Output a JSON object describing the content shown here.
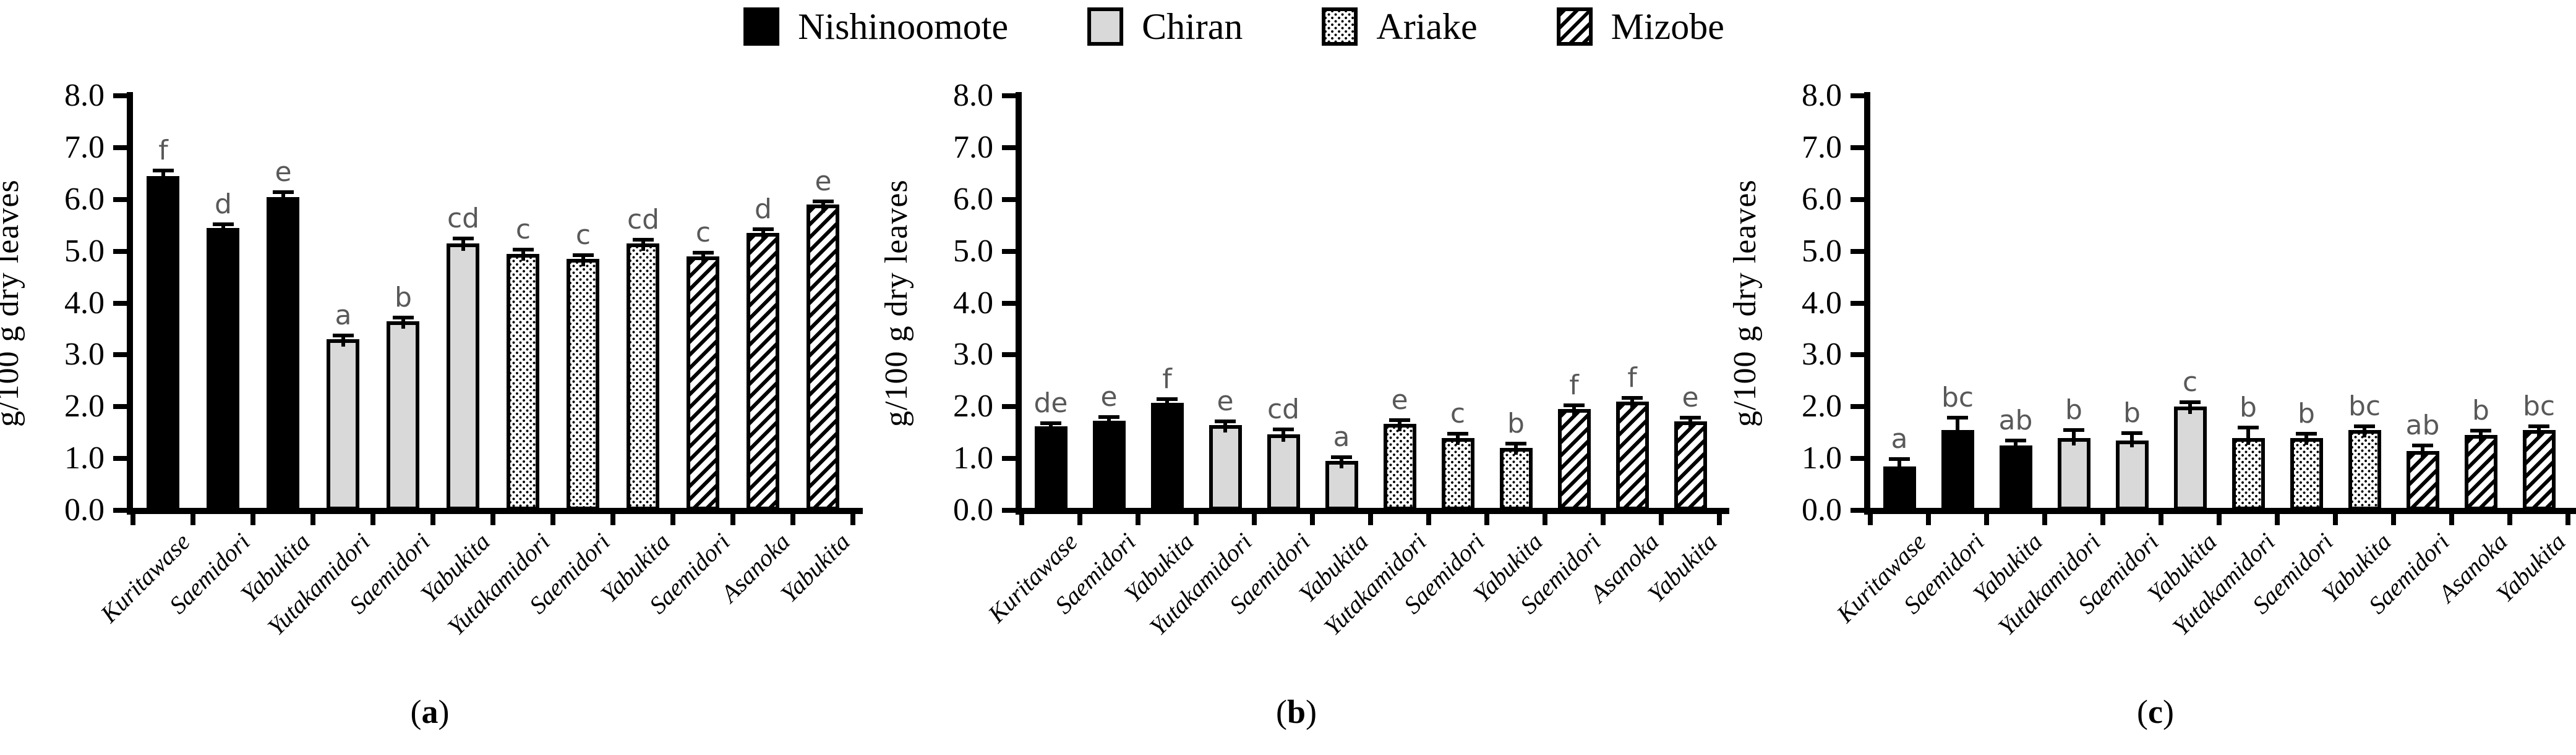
{
  "colors": {
    "background": "#ffffff",
    "axis": "#000000",
    "bar_black": "#000000",
    "bar_gray": "#d9d9d9",
    "significance_letter": "#595959"
  },
  "legend": {
    "items": [
      {
        "label": "Nishinoomote",
        "pattern": "solid-black"
      },
      {
        "label": "Chiran",
        "pattern": "light-gray"
      },
      {
        "label": "Ariake",
        "pattern": "dots"
      },
      {
        "label": "Mizobe",
        "pattern": "diagonal-hatch"
      }
    ]
  },
  "y_axis": {
    "label": "g/100 g dry leaves",
    "min": 0,
    "max": 8,
    "step": 1,
    "tick_labels": [
      "0.0",
      "1.0",
      "2.0",
      "3.0",
      "4.0",
      "5.0",
      "6.0",
      "7.0",
      "8.0"
    ]
  },
  "chart_data": [
    {
      "type": "bar",
      "panel": "a",
      "caption": "(a)",
      "caption_prefix": "(",
      "letter": "a",
      "caption_suffix": ")",
      "ylabel": "g/100 g dry leaves",
      "ylim": [
        0,
        8
      ],
      "yticks": [
        0,
        1,
        2,
        3,
        4,
        5,
        6,
        7,
        8
      ],
      "grid": false,
      "categories": [
        "Kuritawase",
        "Saemidori",
        "Yabukita",
        "Yutakamidori",
        "Saemidori",
        "Yabukita",
        "Yutakamidori",
        "Saemidori",
        "Yabukita",
        "Saemidori",
        "Asanoka",
        "Yabukita"
      ],
      "groups": [
        "Nishinoomote",
        "Nishinoomote",
        "Nishinoomote",
        "Chiran",
        "Chiran",
        "Chiran",
        "Ariake",
        "Ariake",
        "Ariake",
        "Mizobe",
        "Mizobe",
        "Mizobe"
      ],
      "values": [
        6.45,
        5.45,
        6.05,
        3.3,
        3.65,
        5.15,
        4.95,
        4.85,
        5.15,
        4.9,
        5.35,
        5.9
      ],
      "errors": [
        0.07,
        0.03,
        0.05,
        0.04,
        0.04,
        0.06,
        0.04,
        0.04,
        0.04,
        0.03,
        0.04,
        0.03
      ],
      "letters": [
        "f",
        "d",
        "e",
        "a",
        "b",
        "cd",
        "c",
        "c",
        "cd",
        "c",
        "d",
        "e"
      ]
    },
    {
      "type": "bar",
      "panel": "b",
      "caption": "(b)",
      "caption_prefix": "(",
      "letter": "b",
      "caption_suffix": ")",
      "ylabel": "g/100 g dry leaves",
      "ylim": [
        0,
        8
      ],
      "yticks": [
        0,
        1,
        2,
        3,
        4,
        5,
        6,
        7,
        8
      ],
      "grid": false,
      "categories": [
        "Kuritawase",
        "Saemidori",
        "Yabukita",
        "Yutakamidori",
        "Saemidori",
        "Yabukita",
        "Yutakamidori",
        "Saemidori",
        "Yabukita",
        "Saemidori",
        "Asanoka",
        "Yabukita"
      ],
      "groups": [
        "Nishinoomote",
        "Nishinoomote",
        "Nishinoomote",
        "Chiran",
        "Chiran",
        "Chiran",
        "Ariake",
        "Ariake",
        "Ariake",
        "Mizobe",
        "Mizobe",
        "Mizobe"
      ],
      "values": [
        1.62,
        1.73,
        2.07,
        1.65,
        1.47,
        0.95,
        1.67,
        1.4,
        1.21,
        1.96,
        2.1,
        1.72
      ],
      "errors": [
        0.03,
        0.03,
        0.04,
        0.03,
        0.06,
        0.04,
        0.03,
        0.04,
        0.04,
        0.03,
        0.04,
        0.03
      ],
      "letters": [
        "de",
        "e",
        "f",
        "e",
        "cd",
        "a",
        "e",
        "c",
        "b",
        "f",
        "f",
        "e"
      ]
    },
    {
      "type": "bar",
      "panel": "c",
      "caption": "(c)",
      "caption_prefix": "(",
      "letter": "c",
      "caption_suffix": ")",
      "ylabel": "g/100 g dry leaves",
      "ylim": [
        0,
        8
      ],
      "yticks": [
        0,
        1,
        2,
        3,
        4,
        5,
        6,
        7,
        8
      ],
      "grid": false,
      "categories": [
        "Kuritawase",
        "Saemidori",
        "Yabukita",
        "Yutakamidori",
        "Saemidori",
        "Yabukita",
        "Yutakamidori",
        "Saemidori",
        "Yabukita",
        "Saemidori",
        "Asanoka",
        "Yabukita"
      ],
      "groups": [
        "Nishinoomote",
        "Nishinoomote",
        "Nishinoomote",
        "Chiran",
        "Chiran",
        "Chiran",
        "Ariake",
        "Ariake",
        "Ariake",
        "Mizobe",
        "Mizobe",
        "Mizobe"
      ],
      "values": [
        0.85,
        1.55,
        1.25,
        1.4,
        1.35,
        2.0,
        1.4,
        1.4,
        1.55,
        1.15,
        1.45,
        1.55
      ],
      "errors": [
        0.1,
        0.2,
        0.06,
        0.12,
        0.1,
        0.05,
        0.16,
        0.04,
        0.04,
        0.07,
        0.05,
        0.04
      ],
      "letters": [
        "a",
        "bc",
        "ab",
        "b",
        "b",
        "c",
        "b",
        "b",
        "bc",
        "ab",
        "b",
        "bc"
      ]
    }
  ]
}
